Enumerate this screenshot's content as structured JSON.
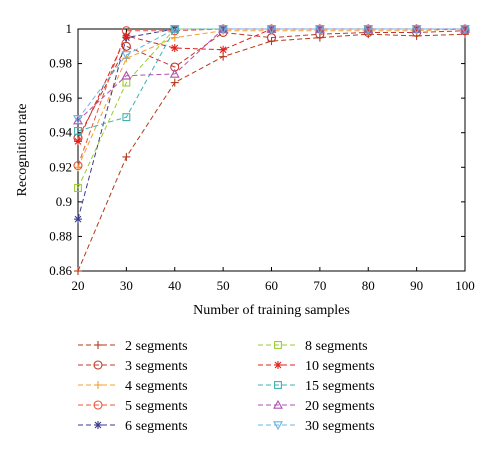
{
  "chart_data": {
    "type": "line",
    "title": "",
    "xlabel": "Number of training samples",
    "ylabel": "Recognition rate",
    "xlim": [
      20,
      100
    ],
    "ylim": [
      0.86,
      1.0
    ],
    "x_ticks": [
      "20",
      "30",
      "40",
      "50",
      "60",
      "70",
      "80",
      "90",
      "100"
    ],
    "y_ticks": [
      "0.86",
      "0.88",
      "0.9",
      "0.92",
      "0.94",
      "0.96",
      "0.98",
      "1"
    ],
    "grid": false,
    "legend_position": "bottom",
    "x": [
      20,
      30,
      40,
      50,
      60,
      70,
      80,
      90,
      100
    ],
    "series": [
      {
        "name": "2 segments",
        "color": "#b33a1a",
        "marker": "plus",
        "values": [
          0.86,
          0.926,
          0.969,
          0.984,
          0.993,
          0.995,
          0.997,
          0.996,
          0.997
        ]
      },
      {
        "name": "3 segments",
        "color": "#c0392b",
        "marker": "circle",
        "values": [
          0.937,
          0.99,
          0.978,
          0.998,
          0.995,
          0.997,
          0.998,
          0.998,
          0.999
        ]
      },
      {
        "name": "4 segments",
        "color": "#f0a030",
        "marker": "plus",
        "values": [
          0.92,
          0.983,
          0.995,
          0.999,
          0.999,
          0.999,
          0.999,
          0.999,
          1.0
        ]
      },
      {
        "name": "5 segments",
        "color": "#e8543a",
        "marker": "circle",
        "values": [
          0.921,
          0.999,
          0.999,
          1.0,
          1.0,
          1.0,
          1.0,
          1.0,
          1.0
        ]
      },
      {
        "name": "6 segments",
        "color": "#3a3a8c",
        "marker": "asterisk",
        "values": [
          0.89,
          0.995,
          1.0,
          1.0,
          1.0,
          1.0,
          1.0,
          1.0,
          1.0
        ]
      },
      {
        "name": "8 segments",
        "color": "#9acd32",
        "marker": "square",
        "values": [
          0.908,
          0.969,
          1.0,
          1.0,
          1.0,
          1.0,
          1.0,
          1.0,
          1.0
        ]
      },
      {
        "name": "10 segments",
        "color": "#e0201a",
        "marker": "asterisk",
        "values": [
          0.935,
          0.996,
          0.989,
          0.988,
          1.0,
          1.0,
          1.0,
          1.0,
          1.0
        ]
      },
      {
        "name": "15 segments",
        "color": "#40b0b0",
        "marker": "square",
        "values": [
          0.941,
          0.949,
          1.0,
          1.0,
          1.0,
          1.0,
          1.0,
          1.0,
          1.0
        ]
      },
      {
        "name": "20 segments",
        "color": "#b050b0",
        "marker": "triangle",
        "values": [
          0.947,
          0.973,
          0.974,
          1.0,
          1.0,
          1.0,
          1.0,
          1.0,
          1.0
        ]
      },
      {
        "name": "30 segments",
        "color": "#6ab4e0",
        "marker": "tri-down",
        "values": [
          0.948,
          0.985,
          1.0,
          1.0,
          1.0,
          1.0,
          1.0,
          1.0,
          1.0
        ]
      }
    ]
  }
}
